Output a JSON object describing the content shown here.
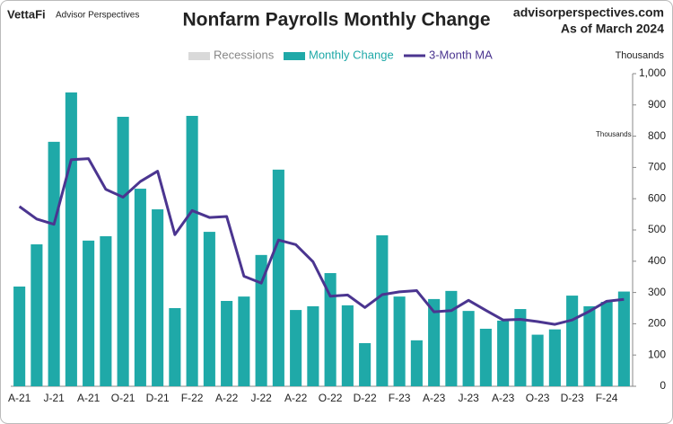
{
  "chart_data": {
    "type": "bar_line",
    "title": "Nonfarm Payrolls Monthly Change",
    "brand": "VettaFi",
    "brand_sub": "Advisor Perspectives",
    "source": "advisorperspectives.com",
    "as_of": "As of March 2024",
    "y_label": "Thousands",
    "annotation": "Thousands",
    "recessions": {
      "name": "Recessions",
      "color": "#d9d9d9"
    },
    "categories": [
      "A-21",
      null,
      "J-21",
      null,
      "A-21",
      null,
      "O-21",
      null,
      "D-21",
      null,
      "F-22",
      null,
      "A-22",
      null,
      "J-22",
      null,
      "A-22",
      null,
      "O-22",
      null,
      "D-22",
      null,
      "F-23",
      null,
      "A-23",
      null,
      "J-23",
      null,
      "A-23",
      null,
      "O-23",
      null,
      "D-23",
      null,
      "F-24",
      null
    ],
    "series": [
      {
        "name": "Monthly Change",
        "color": "#1fa9a8",
        "kind": "bar",
        "values": [
          319,
          454,
          782,
          940,
          466,
          480,
          862,
          632,
          566,
          250,
          865,
          494,
          273,
          287,
          420,
          693,
          244,
          256,
          362,
          259,
          138,
          483,
          287,
          147,
          279,
          305,
          241,
          184,
          210,
          247,
          165,
          182,
          290,
          256,
          270,
          303
        ]
      },
      {
        "name": "3-Month MA",
        "color": "#4b3590",
        "kind": "line",
        "values": [
          575,
          535,
          518,
          725,
          728,
          630,
          605,
          655,
          688,
          485,
          562,
          540,
          543,
          352,
          330,
          468,
          453,
          398,
          288,
          292,
          252,
          293,
          302,
          306,
          238,
          242,
          275,
          243,
          212,
          214,
          207,
          198,
          212,
          240,
          272,
          278
        ]
      }
    ],
    "ylim": [
      0,
      1000
    ],
    "yticks": [
      0,
      100,
      200,
      300,
      400,
      500,
      600,
      700,
      800,
      900,
      {
        "value": 1000,
        "label": "1,000"
      }
    ],
    "grid": false
  }
}
